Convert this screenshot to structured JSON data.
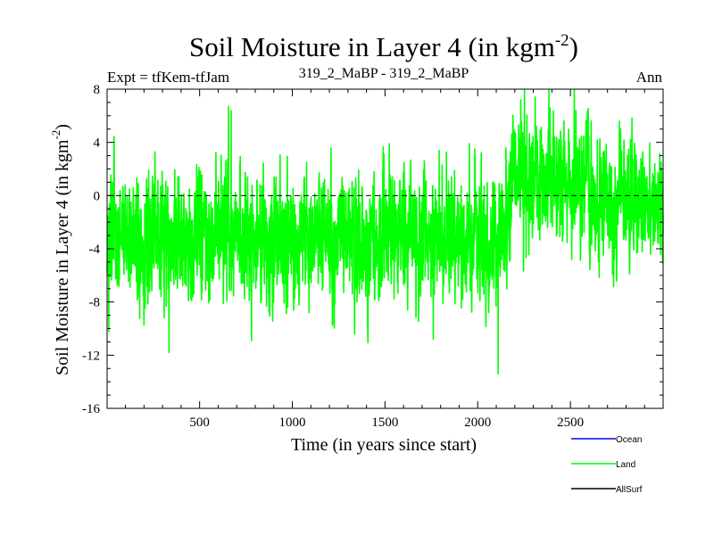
{
  "header": {
    "title": "Soil Moisture in Layer 4 (in kgm",
    "title_sup": "-2",
    "title_close": ")",
    "expt_left": "Expt = tfKem-tfJam",
    "expt_center": "319_2_MaBP - 319_2_MaBP",
    "expt_right": "Ann"
  },
  "chart_data": {
    "type": "line",
    "xlabel": "Time (in years since start)",
    "ylabel": "Soil Moisture in Layer 4 (in kgm",
    "ylabel_sup": "-2",
    "ylabel_close": ")",
    "xlim": [
      1,
      3000
    ],
    "ylim": [
      -16,
      8
    ],
    "x_ticks": [
      500,
      1000,
      1500,
      2000,
      2500
    ],
    "y_ticks": [
      8,
      4,
      0,
      -4,
      -8,
      -12,
      -16
    ],
    "zero_line": 0,
    "legend": [
      {
        "name": "Ocean",
        "color": "#0000ff"
      },
      {
        "name": "Land",
        "color": "#00ff00"
      },
      {
        "name": "AllSurf",
        "color": "#000000"
      }
    ],
    "series": [
      {
        "name": "Land",
        "color": "#00ff00",
        "x_start": 1,
        "x_step": 1,
        "count": 3000,
        "segments": [
          {
            "x0": 1,
            "x1": 2150,
            "mean": -3.3,
            "sd": 2.4
          },
          {
            "x0": 2150,
            "x1": 2200,
            "mean": 0.0,
            "sd": 2.6
          },
          {
            "x0": 2200,
            "x1": 2600,
            "mean": 1.2,
            "sd": 2.4
          },
          {
            "x0": 2600,
            "x1": 3000,
            "mean": -0.6,
            "sd": 2.4
          }
        ],
        "peaks": [
          {
            "x": 656,
            "y": 6.7
          },
          {
            "x": 670,
            "y": 6.4
          },
          {
            "x": 2232,
            "y": 7.2
          },
          {
            "x": 2310,
            "y": 7.4
          },
          {
            "x": 2390,
            "y": 6.6
          },
          {
            "x": 2530,
            "y": 6.4
          },
          {
            "x": 335,
            "y": -11.8
          },
          {
            "x": 2110,
            "y": -13.4
          },
          {
            "x": 780,
            "y": -10.9
          },
          {
            "x": 1760,
            "y": -10.8
          },
          {
            "x": 10,
            "y": -10.2
          }
        ]
      }
    ]
  }
}
